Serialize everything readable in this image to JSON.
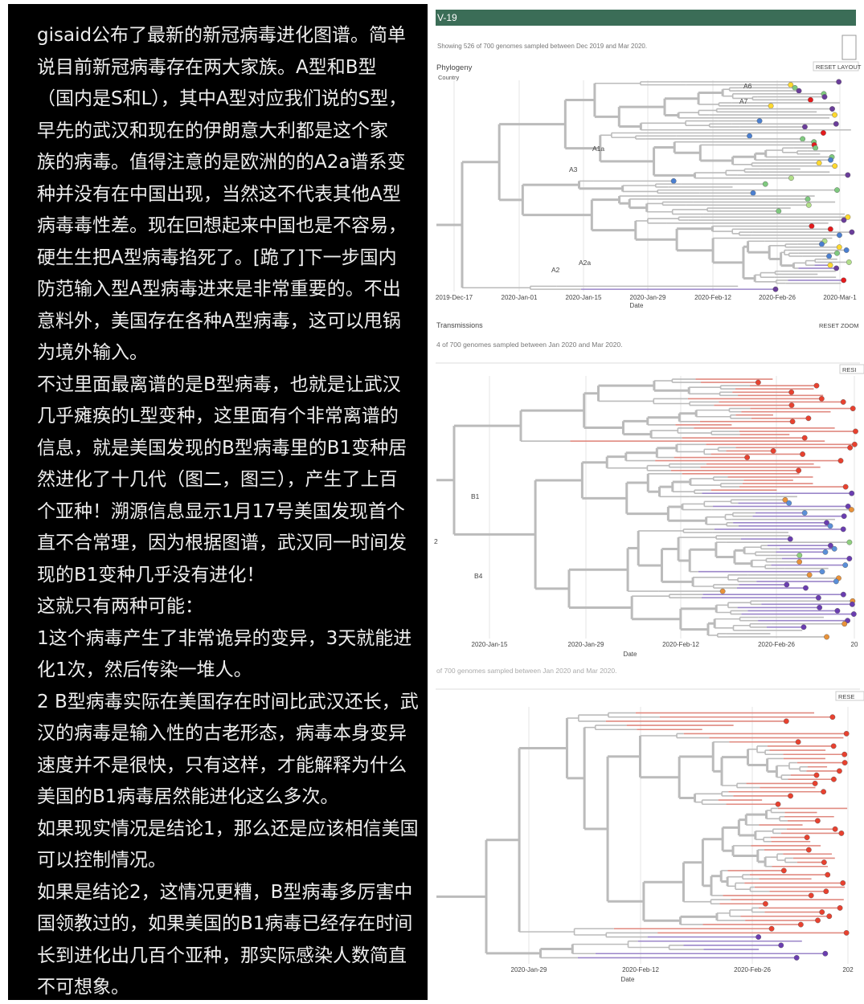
{
  "post": {
    "lines": [
      "gisaid公布了最新的新冠病毒进化图谱。简单",
      "说目前新冠病毒存在两大家族。A型和B型",
      "（国内是S和L），其中A型对应我们说的S型，",
      "早先的武汉和现在的伊朗意大利都是这个家",
      "族的病毒。值得注意的是欧洲的的A2a谱系变",
      "种并没有在中国出现，当然这不代表其他A型",
      "病毒毒性差。现在回想起来中国也是不容易，",
      "硬生生把A型病毒掐死了。[跪了]下一步国内",
      "防范输入型A型病毒进来是非常重要的。不出",
      "意料外，美国存在各种A型病毒，这可以甩锅",
      "为境外输入。",
      "不过里面最离谱的是B型病毒，也就是让武汉",
      "几乎瘫痪的L型变种，这里面有个非常离谱的",
      "信息，就是美国发现的B型病毒里的B1变种居",
      "然进化了十几代（图二，图三），产生了上百",
      "个亚种！溯源信息显示1月17号美国发现首个",
      "直不合常理，因为根据图谱，武汉同一时间发",
      "现的B1变种几乎没有进化！",
      "这就只有两种可能：",
      "1这个病毒产生了非常诡异的变异，3天就能进",
      "化1次，然后传染一堆人。",
      "2 B型病毒实际在美国存在时间比武汉还长，武",
      "汉的病毒是输入性的古老形态，病毒本身变异",
      "速度并不是很快，只有这样，才能解释为什么",
      "美国的B1病毒居然能进化这么多次。",
      "如果现实情况是结论1，那么还是应该相信美国",
      "可以控制情况。",
      "如果是结论2，这情况更糟，B型病毒多厉害中",
      "国领教过的，如果美国的B1病毒已经存在时间",
      "长到进化出几百个亚种，那实际感染人数简直",
      "不可想象。"
    ]
  },
  "panels": [
    {
      "header": "V-19",
      "subtitle": "Showing 526 of 700 genomes sampled between Dec 2019 and Mar 2020.",
      "title": "Phylogeny",
      "dropdown": "Country",
      "button": "RESET LAYOUT",
      "clades": [
        "A6",
        "A7",
        "A1a",
        "A3",
        "A2",
        "A2a"
      ],
      "x_ticks": [
        "2019-Dec-17",
        "2020-Jan-01",
        "2020-Jan-15",
        "2020-Jan-29",
        "2020-Feb-12",
        "2020-Feb-26",
        "2020-Mar-1"
      ],
      "axis_title": "Date",
      "footer_title": "Transmissions",
      "footer_button": "RESET ZOOM"
    },
    {
      "subtitle": "4 of 700 genomes sampled between Jan 2020 and Mar 2020.",
      "button": "RESI",
      "clades": [
        "B1",
        "2",
        "B4"
      ],
      "x_ticks": [
        "2020-Jan-15",
        "2020-Jan-29",
        "2020-Feb-12",
        "2020-Feb-26",
        "20"
      ],
      "axis_title": "Date",
      "footer_subtitle": "of 700 genomes sampled between Jan 2020 and Mar 2020."
    },
    {
      "button": "RESE",
      "x_ticks": [
        "2020-Jan-29",
        "2020-Feb-12",
        "2020-Feb-26",
        "202"
      ],
      "axis_title": "Date"
    }
  ]
}
